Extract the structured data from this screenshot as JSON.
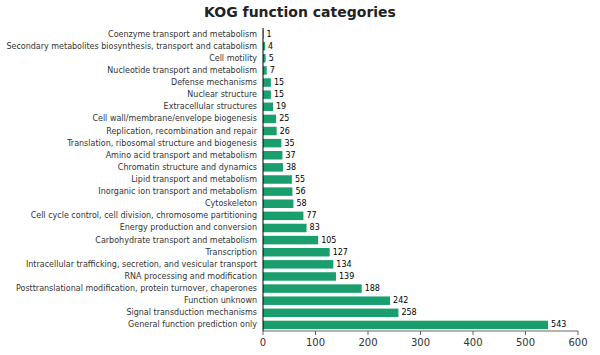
{
  "chart_data": {
    "type": "bar",
    "orientation": "horizontal",
    "title": "KOG function categories",
    "categories": [
      "Coenzyme transport and metabolism",
      "Secondary metabolites biosynthesis, transport and catabolism",
      "Cell motility",
      "Nucleotide transport and metabolism",
      "Defense mechanisms",
      "Nuclear structure",
      "Extracellular structures",
      "Cell wall/membrane/envelope biogenesis",
      "Replication, recombination and repair",
      "Translation, ribosomal structure and biogenesis",
      "Amino acid transport and metabolism",
      "Chromatin structure and dynamics",
      "Lipid transport and metabolism",
      "Inorganic ion transport and metabolism",
      "Cytoskeleton",
      "Cell cycle control, cell division, chromosome partitioning",
      "Energy production and conversion",
      "Carbohydrate transport and metabolism",
      "Transcription",
      "Intracellular trafficking, secretion, and vesicular transport",
      "RNA processing and modification",
      "Posttranslational modification, protein turnover, chaperones",
      "Function unknown",
      "Signal transduction mechanisms",
      "General function prediction only"
    ],
    "values": [
      1,
      4,
      5,
      7,
      15,
      15,
      19,
      25,
      26,
      35,
      37,
      38,
      55,
      56,
      58,
      77,
      83,
      105,
      127,
      134,
      139,
      188,
      242,
      258,
      543
    ],
    "color": "#1a9e6e",
    "xlim": [
      0,
      600
    ],
    "xticks": [
      0,
      100,
      200,
      300,
      400,
      500,
      600
    ],
    "data_labels": true
  }
}
